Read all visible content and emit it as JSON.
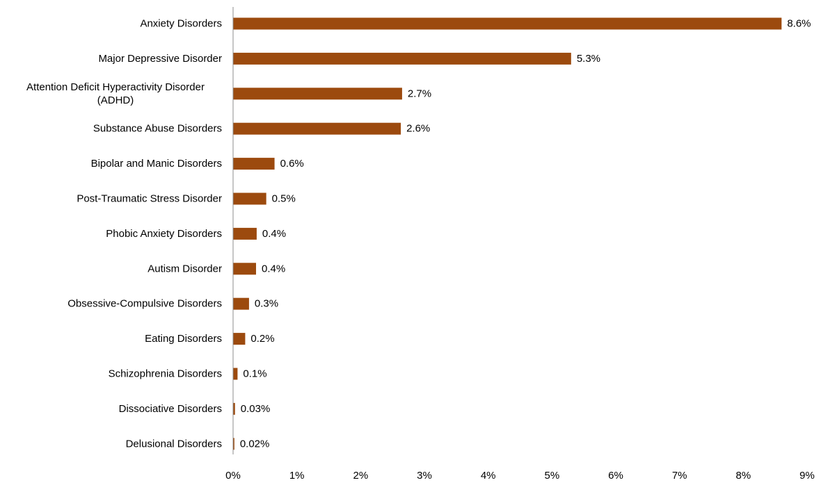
{
  "chart_data": {
    "type": "bar",
    "orientation": "horizontal",
    "categories": [
      "Anxiety Disorders",
      "Major Depressive Disorder",
      "Attention Deficit Hyperactivity Disorder (ADHD)",
      "Substance Abuse Disorders",
      "Bipolar and Manic Disorders",
      "Post-Traumatic Stress Disorder",
      "Phobic Anxiety Disorders",
      "Autism Disorder",
      "Obsessive-Compulsive Disorders",
      "Eating Disorders",
      "Schizophrenia Disorders",
      "Dissociative Disorders",
      "Delusional Disorders"
    ],
    "category_label_lines": [
      [
        "Anxiety Disorders"
      ],
      [
        "Major Depressive Disorder"
      ],
      [
        "Attention Deficit Hyperactivity Disorder",
        "(ADHD)"
      ],
      [
        "Substance Abuse Disorders"
      ],
      [
        "Bipolar and Manic Disorders"
      ],
      [
        "Post-Traumatic Stress Disorder"
      ],
      [
        "Phobic Anxiety Disorders"
      ],
      [
        "Autism Disorder"
      ],
      [
        "Obsessive-Compulsive Disorders"
      ],
      [
        "Eating Disorders"
      ],
      [
        "Schizophrenia Disorders"
      ],
      [
        "Dissociative Disorders"
      ],
      [
        "Delusional Disorders"
      ]
    ],
    "values": [
      8.6,
      5.3,
      2.65,
      2.63,
      0.65,
      0.52,
      0.37,
      0.36,
      0.25,
      0.19,
      0.07,
      0.03,
      0.02
    ],
    "data_labels": [
      "8.6%",
      "5.3%",
      "2.7%",
      "2.6%",
      "0.6%",
      "0.5%",
      "0.4%",
      "0.4%",
      "0.3%",
      "0.2%",
      "0.1%",
      "0.03%",
      "0.02%"
    ],
    "x_ticks": [
      0,
      1,
      2,
      3,
      4,
      5,
      6,
      7,
      8,
      9
    ],
    "x_tick_labels": [
      "0%",
      "1%",
      "2%",
      "3%",
      "4%",
      "5%",
      "6%",
      "7%",
      "8%",
      "9%"
    ],
    "xlim": [
      0,
      9
    ],
    "title": "",
    "xlabel": "",
    "ylabel": "",
    "grid": false,
    "legend": "none",
    "bar_color": "#9C4A0E",
    "axis_color": "#8C8C8C"
  }
}
